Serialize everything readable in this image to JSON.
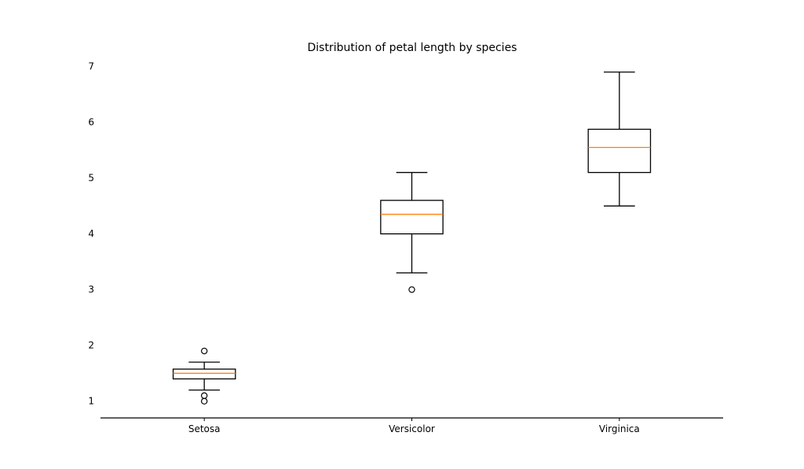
{
  "chart_data": {
    "type": "box",
    "title": "Distribution of petal length by species",
    "xlabel": "",
    "ylabel": "",
    "ylim": [
      0.7,
      7.15
    ],
    "yticks": [
      1,
      2,
      3,
      4,
      5,
      6,
      7
    ],
    "grid": false,
    "categories": [
      "Setosa",
      "Versicolor",
      "Virginica"
    ],
    "boxes": [
      {
        "category": "Setosa",
        "whisker_low": 1.2,
        "q1": 1.4,
        "median": 1.5,
        "q3": 1.575,
        "whisker_high": 1.7,
        "outliers": [
          1.9,
          1.1,
          1.0
        ]
      },
      {
        "category": "Versicolor",
        "whisker_low": 3.3,
        "q1": 4.0,
        "median": 4.35,
        "q3": 4.6,
        "whisker_high": 5.1,
        "outliers": [
          3.0
        ]
      },
      {
        "category": "Virginica",
        "whisker_low": 4.5,
        "q1": 5.1,
        "median": 5.55,
        "q3": 5.875,
        "whisker_high": 6.9,
        "outliers": []
      }
    ],
    "colors": {
      "box_edge": "#000000",
      "median": "#ff7f0e",
      "axis": "#000000"
    }
  }
}
